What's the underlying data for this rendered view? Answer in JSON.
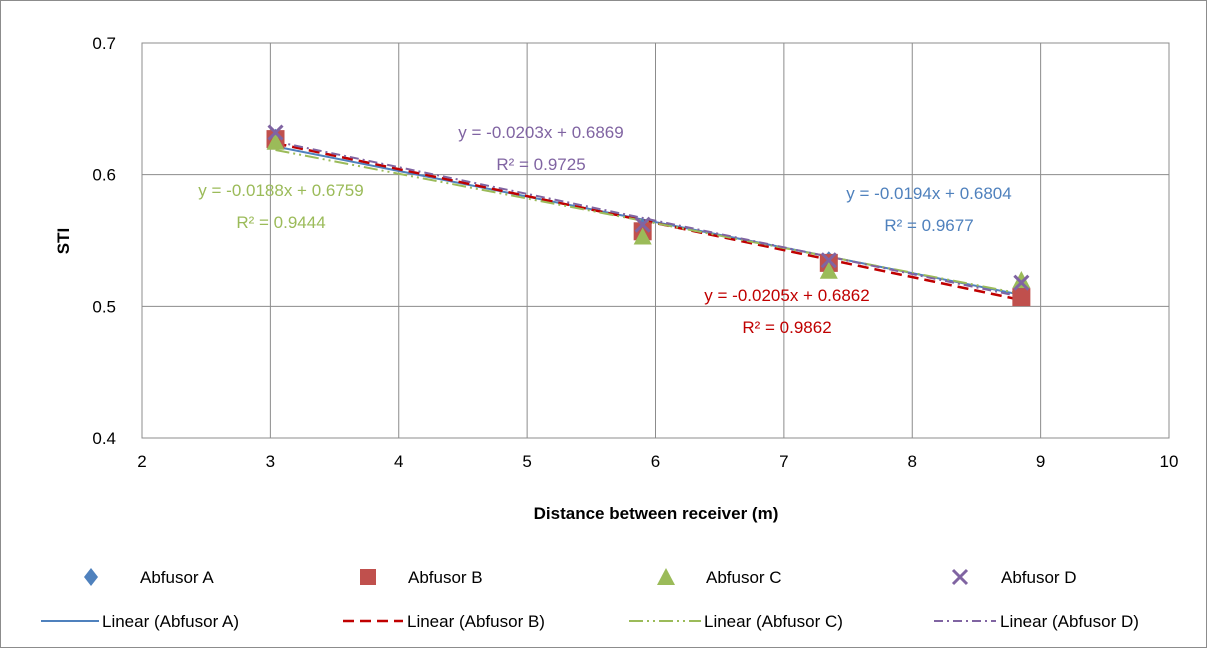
{
  "chart_data": {
    "type": "scatter",
    "title": "",
    "xlabel": "Distance between receiver (m)",
    "ylabel": "STI",
    "xlim": [
      2,
      10
    ],
    "ylim": [
      0.4,
      0.7
    ],
    "x_ticks": [
      2,
      3,
      4,
      5,
      6,
      7,
      8,
      9,
      10
    ],
    "y_ticks": [
      0.4,
      0.5,
      0.6,
      0.7
    ],
    "x_tick_labels": [
      "2",
      "3",
      "4",
      "5",
      "6",
      "7",
      "8",
      "9",
      "10"
    ],
    "y_tick_labels": [
      "0.4",
      "0.5",
      "0.6",
      "0.7"
    ],
    "grid": true,
    "legend_position": "bottom",
    "series": [
      {
        "name": "Abfusor A",
        "marker": "diamond",
        "color": "#4f81bd",
        "x": [
          3.04,
          5.9,
          7.35,
          8.85
        ],
        "y": [
          0.628,
          0.56,
          0.535,
          0.513
        ],
        "trendline": {
          "name": "Linear (Abfusor A)",
          "slope": -0.0194,
          "intercept": 0.6804,
          "equation": "y = -0.0194x + 0.6804",
          "r2": "R² = 0.9677",
          "color": "#4f81bd",
          "dash": "solid",
          "label_color": "#4f81bd"
        }
      },
      {
        "name": "Abfusor B",
        "marker": "square",
        "color": "#c0504d",
        "x": [
          3.04,
          5.9,
          7.35,
          8.85
        ],
        "y": [
          0.627,
          0.557,
          0.533,
          0.507
        ],
        "trendline": {
          "name": "Linear (Abfusor B)",
          "slope": -0.0205,
          "intercept": 0.6862,
          "equation": "y = -0.0205x + 0.6862",
          "r2": "R² = 0.9862",
          "color": "#c00000",
          "dash": "dash",
          "label_color": "#c00000"
        }
      },
      {
        "name": "Abfusor C",
        "marker": "triangle",
        "color": "#9bbb59",
        "x": [
          3.04,
          5.9,
          7.35,
          8.85
        ],
        "y": [
          0.625,
          0.553,
          0.527,
          0.52
        ],
        "trendline": {
          "name": "Linear (Abfusor C)",
          "slope": -0.0188,
          "intercept": 0.6759,
          "equation": "y = -0.0188x + 0.6759",
          "r2": "R² = 0.9444",
          "color": "#9bbb59",
          "dash": "dashdotdot",
          "label_color": "#9bbb59"
        }
      },
      {
        "name": "Abfusor D",
        "marker": "x",
        "color": "#8064a2",
        "x": [
          3.04,
          5.9,
          7.35,
          8.85
        ],
        "y": [
          0.632,
          0.562,
          0.535,
          0.518
        ],
        "trendline": {
          "name": "Linear (Abfusor D)",
          "slope": -0.0203,
          "intercept": 0.6869,
          "equation": "y = -0.0203x + 0.6869",
          "r2": "R² = 0.9725",
          "color": "#8064a2",
          "dash": "dashdot",
          "label_color": "#8064a2"
        }
      }
    ]
  }
}
